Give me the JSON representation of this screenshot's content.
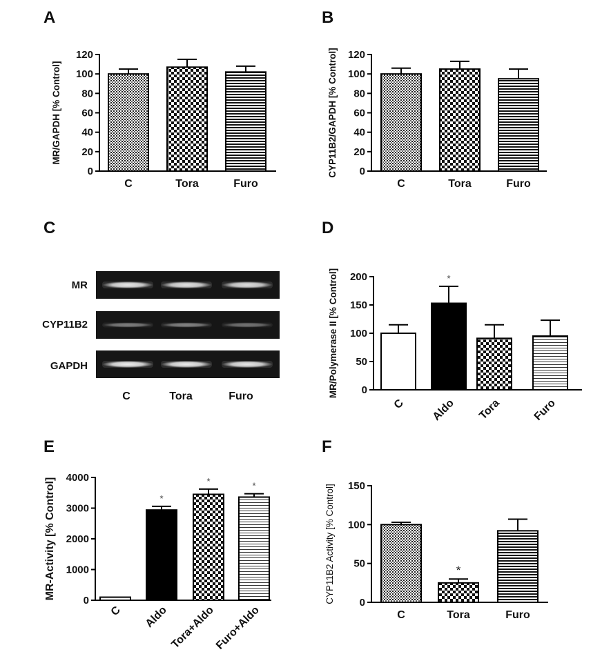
{
  "panels": {
    "A": "A",
    "B": "B",
    "C": "C",
    "D": "D",
    "E": "E",
    "F": "F"
  },
  "gel": {
    "rows": [
      "MR",
      "CYP11B2",
      "GAPDH"
    ],
    "lanes": [
      "C",
      "Tora",
      "Furo"
    ],
    "band_intensity": [
      [
        0.9,
        0.88,
        0.86
      ],
      [
        0.45,
        0.47,
        0.4
      ],
      [
        0.93,
        0.92,
        0.9
      ]
    ]
  },
  "chart_data": [
    {
      "id": "A",
      "type": "bar",
      "ylabel": "MR/GAPDH [% Control]",
      "categories": [
        "C",
        "Tora",
        "Furo"
      ],
      "values": [
        100,
        107,
        102
      ],
      "errors": [
        5,
        8,
        6
      ],
      "patterns": [
        "dots",
        "checker",
        "hlines"
      ],
      "ylim": [
        0,
        120
      ],
      "yticks": [
        0,
        20,
        40,
        60,
        80,
        100,
        120
      ],
      "stars": [
        "",
        "",
        ""
      ]
    },
    {
      "id": "B",
      "type": "bar",
      "ylabel": "CYP11B2/GAPDH [% Control]",
      "categories": [
        "C",
        "Tora",
        "Furo"
      ],
      "values": [
        100,
        105,
        95
      ],
      "errors": [
        6,
        8,
        10
      ],
      "patterns": [
        "dots",
        "checker",
        "hlines"
      ],
      "ylim": [
        0,
        120
      ],
      "yticks": [
        0,
        20,
        40,
        60,
        80,
        100,
        120
      ],
      "stars": [
        "",
        "",
        ""
      ]
    },
    {
      "id": "D",
      "type": "bar",
      "ylabel": "MR/Polymerase II [% Control]",
      "categories": [
        "C",
        "Aldo",
        "Tora",
        "Furo"
      ],
      "values": [
        100,
        153,
        91,
        95
      ],
      "errors": [
        15,
        30,
        24,
        28
      ],
      "patterns": [
        "white",
        "black",
        "checker",
        "hlines-thin"
      ],
      "ylim": [
        0,
        200
      ],
      "yticks": [
        0,
        50,
        100,
        150,
        200
      ],
      "stars": [
        "",
        "*",
        "",
        ""
      ]
    },
    {
      "id": "E",
      "type": "bar",
      "ylabel": "MR-Activity [% Control]",
      "categories": [
        "C",
        "Aldo",
        "Tora+Aldo",
        "Furo+Aldo"
      ],
      "values": [
        100,
        2940,
        3450,
        3360
      ],
      "errors": [
        0,
        120,
        170,
        110
      ],
      "patterns": [
        "white",
        "black",
        "checker",
        "hlines-thin"
      ],
      "ylim": [
        0,
        4000
      ],
      "yticks": [
        0,
        1000,
        2000,
        3000,
        4000
      ],
      "stars": [
        "",
        "*",
        "*",
        "*"
      ]
    },
    {
      "id": "F",
      "type": "bar",
      "ylabel": "CYP11B2 Activity [% Control]",
      "categories": [
        "C",
        "Tora",
        "Furo"
      ],
      "values": [
        100,
        25,
        92
      ],
      "errors": [
        3,
        5,
        15
      ],
      "patterns": [
        "dots",
        "checker",
        "hlines"
      ],
      "ylim": [
        0,
        150
      ],
      "yticks": [
        0,
        50,
        100,
        150
      ],
      "stars": [
        "",
        "*",
        ""
      ]
    }
  ]
}
